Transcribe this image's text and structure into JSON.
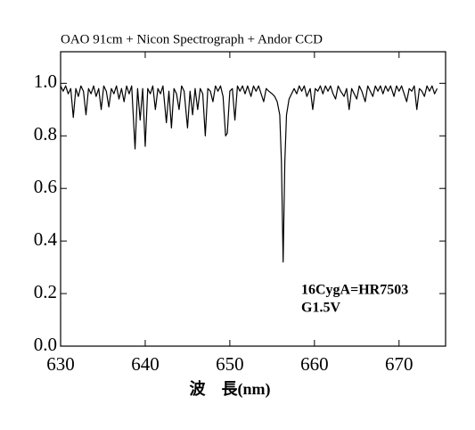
{
  "chart_data": {
    "type": "line",
    "title": "OAO 91cm + Nicon Spectrograph + Andor CCD",
    "x_label": "波　長(nm)",
    "annotations": [
      "16CygA=HR7503",
      "G1.5V"
    ],
    "color": "#000000",
    "xlim": [
      630,
      675.5
    ],
    "xticks": [
      630,
      640,
      650,
      660,
      670
    ],
    "ylim": [
      0,
      1.12
    ],
    "yticks": [
      {
        "value": 0,
        "label": "0.0"
      },
      0.2,
      0.4,
      0.6,
      0.8,
      {
        "value": 1,
        "label": "1.0"
      }
    ],
    "grid": false,
    "x": [
      630.0,
      630.3,
      630.6,
      630.9,
      631.2,
      631.5,
      631.8,
      632.1,
      632.4,
      632.7,
      633.0,
      633.3,
      633.6,
      633.9,
      634.2,
      634.5,
      634.8,
      635.1,
      635.4,
      635.7,
      636.0,
      636.3,
      636.6,
      636.9,
      637.2,
      637.5,
      637.8,
      638.1,
      638.4,
      638.8,
      639.1,
      639.4,
      639.7,
      640.0,
      640.3,
      640.6,
      640.9,
      641.2,
      641.5,
      641.8,
      642.1,
      642.5,
      642.8,
      643.1,
      643.4,
      643.7,
      644.0,
      644.3,
      644.6,
      645.0,
      645.3,
      645.6,
      645.9,
      646.2,
      646.5,
      646.8,
      647.1,
      647.4,
      647.7,
      648.0,
      648.3,
      648.6,
      648.9,
      649.2,
      649.5,
      649.7,
      650.0,
      650.3,
      650.6,
      650.9,
      651.2,
      651.5,
      651.8,
      652.1,
      652.5,
      652.8,
      653.1,
      653.4,
      653.7,
      654.0,
      654.3,
      654.6,
      655.0,
      655.3,
      655.6,
      655.9,
      656.1,
      656.3,
      656.5,
      656.7,
      657.0,
      657.3,
      657.6,
      657.9,
      658.2,
      658.5,
      658.8,
      659.1,
      659.5,
      659.8,
      660.1,
      660.4,
      660.7,
      661.0,
      661.3,
      661.6,
      661.9,
      662.2,
      662.5,
      662.8,
      663.1,
      663.5,
      663.8,
      664.1,
      664.4,
      664.7,
      665.0,
      665.3,
      665.6,
      666.0,
      666.3,
      666.6,
      666.9,
      667.2,
      667.5,
      667.8,
      668.1,
      668.4,
      668.7,
      669.0,
      669.4,
      669.7,
      670.0,
      670.3,
      670.6,
      670.9,
      671.2,
      671.5,
      671.8,
      672.1,
      672.4,
      672.7,
      673.0,
      673.3,
      673.6,
      673.9,
      674.2,
      674.5
    ],
    "values": [
      0.99,
      0.97,
      0.99,
      0.96,
      0.98,
      0.87,
      0.98,
      0.95,
      0.99,
      0.97,
      0.88,
      0.98,
      0.96,
      0.99,
      0.95,
      0.98,
      0.9,
      0.99,
      0.97,
      0.91,
      0.98,
      0.96,
      0.99,
      0.94,
      0.98,
      0.93,
      0.99,
      0.96,
      0.99,
      0.75,
      0.98,
      0.86,
      0.98,
      0.76,
      0.98,
      0.96,
      0.99,
      0.9,
      0.98,
      0.96,
      0.99,
      0.85,
      0.97,
      0.83,
      0.98,
      0.96,
      0.9,
      0.99,
      0.97,
      0.83,
      0.97,
      0.88,
      0.98,
      0.9,
      0.98,
      0.96,
      0.8,
      0.98,
      0.97,
      0.93,
      0.99,
      0.97,
      0.99,
      0.95,
      0.8,
      0.81,
      0.97,
      0.98,
      0.86,
      0.99,
      0.97,
      0.99,
      0.96,
      0.99,
      0.95,
      0.99,
      0.97,
      0.99,
      0.96,
      0.93,
      0.98,
      0.97,
      0.96,
      0.95,
      0.93,
      0.88,
      0.7,
      0.32,
      0.7,
      0.88,
      0.94,
      0.96,
      0.98,
      0.96,
      0.99,
      0.97,
      0.99,
      0.95,
      0.98,
      0.9,
      0.98,
      0.97,
      0.99,
      0.96,
      0.99,
      0.97,
      0.99,
      0.96,
      0.94,
      0.99,
      0.97,
      0.95,
      0.98,
      0.9,
      0.98,
      0.96,
      0.94,
      0.99,
      0.97,
      0.93,
      0.99,
      0.97,
      0.95,
      0.99,
      0.97,
      0.99,
      0.96,
      0.99,
      0.97,
      0.99,
      0.95,
      0.99,
      0.97,
      0.99,
      0.96,
      0.93,
      0.98,
      0.97,
      0.99,
      0.9,
      0.98,
      0.97,
      0.95,
      0.99,
      0.97,
      0.99,
      0.96,
      0.98
    ]
  }
}
